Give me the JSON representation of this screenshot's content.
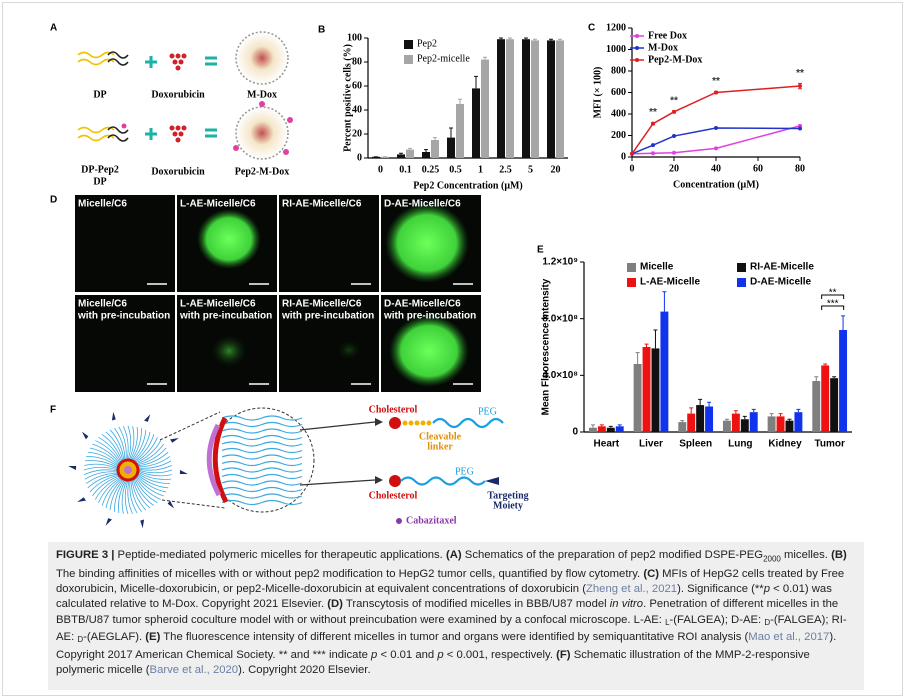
{
  "panel_a": {
    "label": "A",
    "top": {
      "left": "DP",
      "middle": "Doxorubicin",
      "right": "M-Dox"
    },
    "bottom": {
      "left": [
        "DP-Pep2",
        "DP"
      ],
      "middle": "Doxorubicin",
      "right": "Pep2-M-Dox"
    }
  },
  "chart_data": [
    {
      "type": "bar",
      "label": "B",
      "ylabel": "Percent positive cells (%)",
      "xlabel": "Pep2 Concentration (μM)",
      "categories": [
        "0",
        "0.1",
        "0.25",
        "0.5",
        "1",
        "2.5",
        "5",
        "20"
      ],
      "series": [
        {
          "name": "Pep2",
          "color": "#111111",
          "values": [
            1,
            3,
            5,
            17,
            58,
            99,
            99,
            98
          ],
          "errors": [
            0,
            1,
            2,
            8,
            10,
            1,
            1,
            1
          ]
        },
        {
          "name": "Pep2-micelle",
          "color": "#a6a6a6",
          "values": [
            1,
            7,
            15,
            45,
            82,
            99,
            98,
            98
          ],
          "errors": [
            0,
            1,
            2,
            4,
            2,
            1,
            1,
            1
          ]
        }
      ],
      "ylim": [
        0,
        100
      ],
      "yticks": [
        0,
        20,
        40,
        60,
        80,
        100
      ]
    },
    {
      "type": "line",
      "label": "C",
      "ylabel": "MFI (× 100)",
      "xlabel": "Concentration (μM)",
      "x": [
        0,
        10,
        20,
        40,
        80
      ],
      "series": [
        {
          "name": "Free Dox",
          "color": "#e040e0",
          "values": [
            30,
            35,
            40,
            80,
            290
          ]
        },
        {
          "name": "M-Dox",
          "color": "#2233cc",
          "values": [
            30,
            110,
            195,
            270,
            265
          ]
        },
        {
          "name": "Pep2-M-Dox",
          "color": "#e02020",
          "values": [
            30,
            310,
            420,
            600,
            660
          ],
          "errors": [
            0,
            10,
            10,
            10,
            25
          ]
        }
      ],
      "annotations": [
        {
          "text": "**",
          "x": 10
        },
        {
          "text": "**",
          "x": 20
        },
        {
          "text": "**",
          "x": 40
        },
        {
          "text": "**",
          "x": 80
        }
      ],
      "xlim": [
        0,
        80
      ],
      "xticks": [
        0,
        20,
        40,
        60,
        80
      ],
      "ylim": [
        0,
        1200
      ],
      "yticks": [
        0,
        200,
        400,
        600,
        800,
        1000,
        1200
      ]
    },
    {
      "type": "bar",
      "label": "E",
      "ylabel": "Mean Fluorescence Intensity",
      "categories": [
        "Heart",
        "Liver",
        "Spleen",
        "Lung",
        "Kidney",
        "Tumor"
      ],
      "series": [
        {
          "name": "Micelle",
          "color": "#7f7f7f",
          "values": [
            30000000,
            480000000,
            70000000,
            80000000,
            110000000,
            360000000
          ],
          "errors": [
            20000000,
            80000000,
            10000000,
            10000000,
            20000000,
            30000000
          ]
        },
        {
          "name": "L-AE-Micelle",
          "color": "#ee1111",
          "values": [
            40000000,
            600000000,
            130000000,
            130000000,
            110000000,
            470000000
          ],
          "errors": [
            10000000,
            20000000,
            40000000,
            20000000,
            20000000,
            10000000
          ]
        },
        {
          "name": "RI-AE-Micelle",
          "color": "#111111",
          "values": [
            30000000,
            590000000,
            190000000,
            90000000,
            80000000,
            380000000
          ],
          "errors": [
            10000000,
            130000000,
            40000000,
            20000000,
            10000000,
            10000000
          ]
        },
        {
          "name": "D-AE-Micelle",
          "color": "#1133ee",
          "values": [
            40000000,
            850000000,
            180000000,
            140000000,
            140000000,
            720000000
          ],
          "errors": [
            10000000,
            140000000,
            30000000,
            20000000,
            20000000,
            100000000
          ]
        }
      ],
      "annotations": [
        "**",
        "***"
      ],
      "ylim": [
        0,
        1200000000
      ],
      "yticks": [
        0,
        {
          "value": 400000000,
          "label": "4.0×10⁸"
        },
        {
          "value": 800000000,
          "label": "8.0×10⁸"
        },
        {
          "value": 1200000000,
          "label": "1.2×10⁹"
        }
      ]
    }
  ],
  "panel_d": {
    "label": "D",
    "rows": [
      [
        [
          "Micelle/C6"
        ],
        [
          "L-AE-Micelle/C6"
        ],
        [
          "RI-AE-Micelle/C6"
        ],
        [
          "D-AE-Micelle/C6"
        ]
      ],
      [
        [
          "Micelle/C6",
          "with pre-incubation"
        ],
        [
          "L-AE-Micelle/C6",
          "with pre-incubation"
        ],
        [
          "RI-AE-Micelle/C6",
          "with pre-incubation"
        ],
        [
          "D-AE-Micelle/C6",
          "with pre-incubation"
        ]
      ]
    ]
  },
  "panel_f": {
    "label": "F",
    "top": {
      "anchor": "Cholesterol",
      "chain": "PEG",
      "linker": [
        "Cleavable",
        "linker"
      ]
    },
    "bottom": {
      "anchor": "Cholesterol",
      "chain": "PEG",
      "end": [
        "Targeting",
        "Moiety"
      ]
    },
    "drug": "Cabazitaxel"
  },
  "caption": [
    "FIGURE 3 |",
    " Peptide-mediated polymeric micelles for therapeutic applications. ",
    "(A)",
    " Schematics of the preparation of pep2 modified DSPE-PEG",
    "2000",
    " micelles. ",
    "(B)",
    " The binding affinities of micelles with or without pep2 modification to HepG2 tumor cells, quantified by flow cytometry. ",
    "(C)",
    " MFIs of HepG2 cells treated by Free doxorubicin, Micelle-doxorubicin, or pep2-Micelle-doxorubicin at equivalent concentrations of doxorubicin (",
    "Zheng et al., 2021",
    "). Significance (**",
    "p",
    " < 0.01) was calculated relative to M-Dox. Copyright 2021 Elsevier. ",
    "(D)",
    " Transcytosis of modified micelles in BBB/U87 model ",
    "in vitro",
    ". Penetration of different micelles in the BBTB/U87 tumor spheroid coculture model with or without preincubation were examined by a confocal microscope. L-AE: ",
    "L",
    "-(FALGEA); D-AE: ",
    "D",
    "-(FALGEA); RI-AE: ",
    "D",
    "-(AEGLAF). ",
    "(E)",
    " The fluorescence intensity of different micelles in tumor and organs were identified by semiquantitative ROI analysis (",
    "Mao et al., 2017",
    "). Copyright 2017 American Chemical Society. ** and *** indicate ",
    "p",
    " < 0.01 and ",
    "p",
    " < 0.001, respectively. ",
    "(F)",
    " Schematic illustration of the MMP-2-responsive polymeric micelle (",
    "Barve et al., 2020",
    "). Copyright 2020 Elsevier."
  ]
}
